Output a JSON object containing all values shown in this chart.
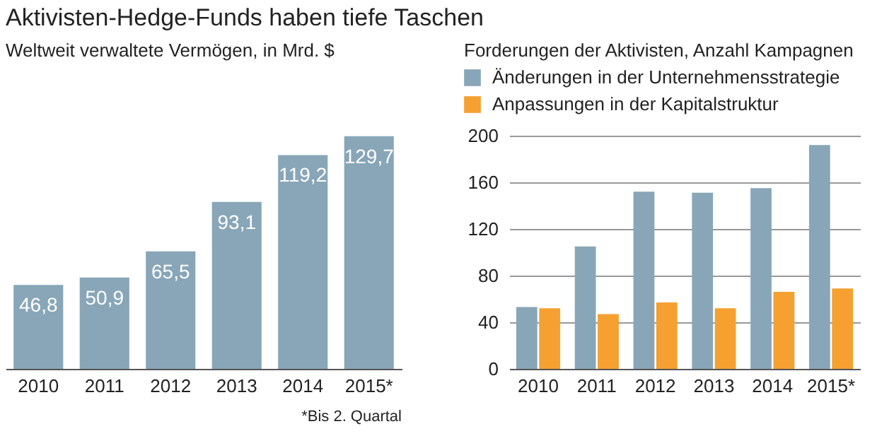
{
  "chart_data": [
    {
      "type": "bar",
      "title": "Aktivisten-Hedge-Funds haben tiefe Taschen",
      "subtitle": "Weltweit verwaltete Vermögen, in Mrd. $",
      "categories": [
        "2010",
        "2011",
        "2012",
        "2013",
        "2014",
        "2015*"
      ],
      "values": [
        46.8,
        50.9,
        65.5,
        93.1,
        119.2,
        129.7
      ],
      "value_labels": [
        "46,8",
        "50,9",
        "65,5",
        "93,1",
        "119,2",
        "129,7"
      ],
      "color": "#88a6b8",
      "tick_labels": "x",
      "annotations": [
        "*Bis 2. Quartal"
      ]
    },
    {
      "type": "bar",
      "title": "Forderungen der Aktivisten, Anzahl Kampagnen",
      "categories": [
        "2010",
        "2011",
        "2012",
        "2013",
        "2014",
        "2015*"
      ],
      "series": [
        {
          "name": "Änderungen in der Unternehmensstrategie",
          "color": "#88a6b8",
          "values": [
            53,
            105,
            152,
            151,
            155,
            192
          ]
        },
        {
          "name": "Anpassungen in der Kapitalstruktur",
          "color": "#f5a030",
          "values": [
            52,
            47,
            57,
            52,
            66,
            69
          ]
        }
      ],
      "ylim": [
        0,
        200
      ],
      "yticks": [
        0,
        40,
        80,
        120,
        160,
        200
      ],
      "grid": "y",
      "legend": "top"
    }
  ]
}
